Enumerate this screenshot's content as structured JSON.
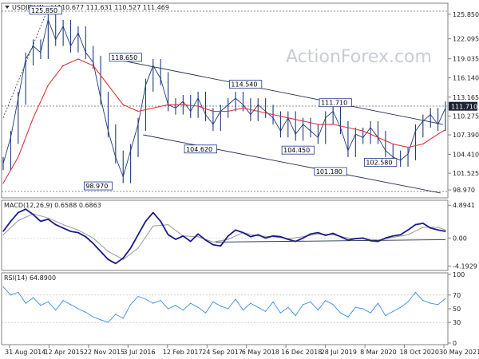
{
  "chart_data": {
    "type": "line",
    "title": "USDJPY Weekly",
    "ohlc": "110.677 111.631 110.527 111.469",
    "watermark": "ActionForex.com",
    "x_ticks": [
      "31 Aug 2014",
      "12 Apr 2015",
      "22 Nov 2015",
      "3 Jul 2016",
      "12 Feb 2017",
      "24 Sep 2017",
      "6 May 2018",
      "16 Dec 2018",
      "28 Jul 2019",
      "8 Mar 2020",
      "18 Oct 2020",
      "30 May 2021"
    ],
    "price_panel": {
      "ylim": [
        98.0,
        127.3
      ],
      "y_ticks": [
        "125.850",
        "122.095",
        "119.035",
        "116.140",
        "113.165",
        "110.275",
        "107.390",
        "104.410",
        "101.525",
        "98.970"
      ],
      "current_price": "111.710",
      "series": [
        {
          "name": "price",
          "color": "#1f3a7a",
          "x": [
            0,
            6,
            12,
            18,
            24,
            30,
            36,
            42,
            48,
            54,
            60,
            66,
            72,
            78,
            84,
            90,
            96,
            102,
            108,
            114,
            120,
            126,
            132,
            138,
            144,
            150,
            156,
            162,
            168,
            174,
            180,
            186,
            192,
            198,
            204,
            210,
            216,
            222,
            228,
            234,
            240,
            246,
            252,
            258,
            264,
            270,
            276,
            282,
            288,
            294,
            300,
            306,
            312,
            318,
            324,
            330,
            336,
            342,
            348,
            354
          ],
          "y": [
            103.0,
            107.0,
            113.0,
            119.0,
            121.0,
            120.0,
            125.0,
            122.0,
            124.0,
            121.0,
            123.0,
            120.0,
            118.5,
            113.0,
            108.0,
            104.0,
            101.0,
            105.0,
            109.0,
            115.0,
            118.0,
            116.0,
            112.0,
            111.5,
            112.5,
            111.0,
            113.0,
            110.5,
            109.0,
            111.0,
            112.0,
            113.0,
            112.0,
            110.5,
            112.0,
            111.0,
            110.0,
            108.0,
            110.0,
            107.5,
            109.0,
            108.0,
            107.0,
            110.0,
            111.0,
            108.5,
            105.0,
            107.5,
            107.0,
            108.5,
            107.0,
            105.0,
            104.0,
            103.5,
            104.5,
            108.0,
            109.5,
            110.5,
            109.0,
            111.5
          ]
        },
        {
          "name": "moving-average",
          "color": "#e0303a",
          "x": [
            0,
            12,
            24,
            36,
            48,
            60,
            72,
            84,
            96,
            108,
            120,
            132,
            144,
            156,
            168,
            180,
            192,
            204,
            216,
            228,
            240,
            252,
            264,
            276,
            288,
            300,
            312,
            324,
            336,
            348,
            354
          ],
          "y": [
            100.0,
            104.0,
            110.0,
            115.0,
            118.0,
            119.0,
            118.0,
            115.0,
            112.0,
            111.0,
            111.5,
            112.0,
            112.0,
            111.8,
            111.0,
            111.0,
            111.5,
            111.0,
            110.5,
            110.0,
            109.5,
            109.0,
            109.0,
            108.5,
            108.0,
            107.0,
            106.0,
            105.5,
            106.0,
            107.5,
            108.2
          ]
        }
      ],
      "annotations": [
        {
          "label": "125.850",
          "x": 34,
          "y": 125.85
        },
        {
          "label": "118.650",
          "x": 98,
          "y": 118.65
        },
        {
          "label": "114.540",
          "x": 194,
          "y": 114.54
        },
        {
          "label": "111.710",
          "x": 266,
          "y": 111.71
        },
        {
          "label": "104.620",
          "x": 158,
          "y": 104.62
        },
        {
          "label": "104.450",
          "x": 236,
          "y": 104.45
        },
        {
          "label": "101.180",
          "x": 262,
          "y": 101.18
        },
        {
          "label": "102.580",
          "x": 302,
          "y": 102.58
        },
        {
          "label": "98.970",
          "x": 76,
          "y": 98.97
        }
      ],
      "channel": [
        {
          "x1": 98,
          "y1": 118.65,
          "x2": 352,
          "y2": 109.0
        },
        {
          "x1": 112,
          "y1": 107.4,
          "x2": 350,
          "y2": 98.5
        }
      ]
    },
    "macd_panel": {
      "label": "MACD(12,26,9) 0.6588 0.6863",
      "ylim": [
        -4.6,
        5.4
      ],
      "y_ticks": [
        "4.8941",
        "0.00",
        "-4.1929"
      ],
      "series": [
        {
          "name": "macd",
          "color": "#1a1a8c",
          "x": [
            0,
            6,
            12,
            18,
            24,
            30,
            36,
            42,
            48,
            54,
            60,
            66,
            72,
            78,
            84,
            90,
            96,
            102,
            108,
            114,
            120,
            126,
            132,
            138,
            144,
            150,
            156,
            162,
            168,
            174,
            180,
            186,
            192,
            198,
            204,
            210,
            216,
            222,
            228,
            234,
            240,
            246,
            252,
            258,
            264,
            270,
            276,
            282,
            288,
            294,
            300,
            306,
            312,
            318,
            324,
            330,
            336,
            342,
            348,
            354
          ],
          "y": [
            1.0,
            2.5,
            3.8,
            4.3,
            3.5,
            2.5,
            2.8,
            2.0,
            1.5,
            1.0,
            0.8,
            0.2,
            -0.8,
            -2.0,
            -3.2,
            -3.8,
            -3.0,
            -1.5,
            0.5,
            2.5,
            3.8,
            2.5,
            0.5,
            -0.2,
            0.3,
            -0.5,
            0.6,
            -0.3,
            -1.0,
            -1.2,
            0.3,
            1.2,
            0.8,
            0.2,
            0.5,
            0.0,
            0.3,
            0.2,
            -0.2,
            -0.5,
            0.0,
            0.6,
            0.8,
            0.4,
            0.7,
            0.2,
            -0.3,
            -0.1,
            0.0,
            -0.4,
            -0.5,
            0.0,
            0.3,
            0.5,
            1.2,
            2.0,
            2.2,
            1.5,
            1.2,
            1.0
          ]
        },
        {
          "name": "signal",
          "color": "#9a9a9a",
          "x": [
            0,
            12,
            24,
            36,
            48,
            60,
            72,
            84,
            96,
            108,
            120,
            132,
            144,
            156,
            168,
            180,
            192,
            204,
            216,
            228,
            240,
            252,
            264,
            276,
            288,
            300,
            312,
            324,
            336,
            348,
            354
          ],
          "y": [
            0.5,
            2.6,
            3.6,
            3.0,
            2.0,
            1.2,
            0.0,
            -2.0,
            -3.2,
            -1.5,
            1.8,
            2.0,
            0.3,
            0.2,
            -0.6,
            -0.2,
            0.8,
            0.3,
            0.2,
            -0.1,
            0.2,
            0.6,
            0.5,
            0.0,
            -0.1,
            -0.3,
            0.1,
            0.5,
            1.6,
            1.6,
            1.2
          ]
        }
      ],
      "trendline": {
        "x1": 170,
        "y1": -0.6,
        "x2": 354,
        "y2": -0.25
      }
    },
    "rsi_panel": {
      "label": "RSI(14) 64.8900",
      "ylim": [
        0,
        100
      ],
      "y_ticks": [
        "100",
        "70",
        "50",
        "30",
        "0"
      ],
      "series": [
        {
          "name": "rsi",
          "color": "#3a8fe0",
          "x": [
            0,
            6,
            12,
            18,
            24,
            30,
            36,
            42,
            48,
            54,
            60,
            66,
            72,
            78,
            84,
            90,
            96,
            102,
            108,
            114,
            120,
            126,
            132,
            138,
            144,
            150,
            156,
            162,
            168,
            174,
            180,
            186,
            192,
            198,
            204,
            210,
            216,
            222,
            228,
            234,
            240,
            246,
            252,
            258,
            264,
            270,
            276,
            282,
            288,
            294,
            300,
            306,
            312,
            318,
            324,
            330,
            336,
            342,
            348,
            354
          ],
          "y": [
            82,
            70,
            74,
            58,
            66,
            55,
            60,
            48,
            62,
            56,
            50,
            45,
            38,
            34,
            30,
            42,
            36,
            56,
            68,
            64,
            58,
            62,
            50,
            55,
            48,
            58,
            52,
            44,
            60,
            54,
            50,
            64,
            48,
            58,
            52,
            46,
            60,
            44,
            52,
            40,
            56,
            60,
            48,
            62,
            56,
            44,
            38,
            52,
            50,
            44,
            58,
            40,
            46,
            52,
            60,
            74,
            62,
            58,
            56,
            65
          ]
        }
      ]
    }
  }
}
